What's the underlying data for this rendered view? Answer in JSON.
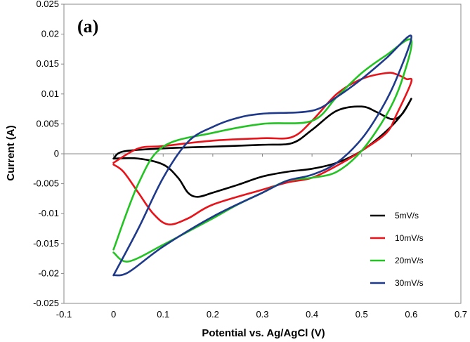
{
  "chart_data": {
    "type": "line",
    "panel_label": "(a)",
    "xlabel": "Potential vs. Ag/AgCl (V)",
    "ylabel": "Current (A)",
    "xlim": [
      -0.1,
      0.7
    ],
    "ylim": [
      -0.025,
      0.025
    ],
    "x_ticks": [
      "-0.1",
      "0",
      "0.1",
      "0.2",
      "0.3",
      "0.4",
      "0.5",
      "0.6",
      "0.7"
    ],
    "y_ticks": [
      "-0.025",
      "-0.02",
      "-0.015",
      "-0.01",
      "-0.005",
      "0",
      "0.005",
      "0.01",
      "0.015",
      "0.02",
      "0.025"
    ],
    "grid": false,
    "legend_position": "bottom-right",
    "series": [
      {
        "name": "5mV/s",
        "color": "#000000",
        "x": [
          0.0,
          0.02,
          0.1,
          0.2,
          0.3,
          0.36,
          0.4,
          0.45,
          0.5,
          0.53,
          0.56,
          0.58,
          0.6,
          0.58,
          0.55,
          0.5,
          0.45,
          0.4,
          0.35,
          0.3,
          0.25,
          0.2,
          0.17,
          0.15,
          0.13,
          0.1,
          0.05,
          0.0
        ],
        "y": [
          -0.0008,
          0.0004,
          0.0009,
          0.0012,
          0.0015,
          0.0018,
          0.004,
          0.0072,
          0.0079,
          0.007,
          0.0058,
          0.0065,
          0.0092,
          0.0065,
          0.0038,
          0.0005,
          -0.0015,
          -0.0025,
          -0.003,
          -0.0038,
          -0.0052,
          -0.0065,
          -0.0072,
          -0.0065,
          -0.004,
          -0.0018,
          -0.0008,
          -0.0008
        ]
      },
      {
        "name": "10mV/s",
        "color": "#e8141b",
        "x": [
          0.0,
          0.05,
          0.1,
          0.2,
          0.3,
          0.36,
          0.4,
          0.45,
          0.5,
          0.55,
          0.57,
          0.59,
          0.6,
          0.57,
          0.55,
          0.5,
          0.45,
          0.4,
          0.35,
          0.3,
          0.2,
          0.15,
          0.11,
          0.08,
          0.05,
          0.02,
          0.0
        ],
        "y": [
          -0.0015,
          0.0009,
          0.0013,
          0.0022,
          0.0026,
          0.0028,
          0.0055,
          0.01,
          0.0125,
          0.0135,
          0.0133,
          0.0125,
          0.012,
          0.0065,
          0.0035,
          0.0005,
          -0.002,
          -0.004,
          -0.0048,
          -0.006,
          -0.0085,
          -0.0108,
          -0.0118,
          -0.01,
          -0.0065,
          -0.003,
          -0.0018
        ]
      },
      {
        "name": "20mV/s",
        "color": "#22c322",
        "x": [
          0.0,
          0.05,
          0.1,
          0.2,
          0.3,
          0.4,
          0.45,
          0.5,
          0.55,
          0.6,
          0.58,
          0.55,
          0.5,
          0.45,
          0.4,
          0.35,
          0.3,
          0.25,
          0.2,
          0.15,
          0.1,
          0.03,
          0.0
        ],
        "y": [
          -0.016,
          -0.005,
          0.0012,
          0.0035,
          0.005,
          0.0055,
          0.0095,
          0.0135,
          0.0165,
          0.019,
          0.012,
          0.0065,
          0.0005,
          -0.003,
          -0.004,
          -0.0045,
          -0.0065,
          -0.0085,
          -0.0108,
          -0.013,
          -0.0152,
          -0.018,
          -0.0165
        ]
      },
      {
        "name": "30mV/s",
        "color": "#1f3a8a",
        "x": [
          0.0,
          0.05,
          0.1,
          0.15,
          0.2,
          0.25,
          0.3,
          0.4,
          0.45,
          0.5,
          0.55,
          0.6,
          0.57,
          0.54,
          0.5,
          0.45,
          0.4,
          0.35,
          0.3,
          0.2,
          0.1,
          0.03,
          0.0
        ],
        "y": [
          -0.0203,
          -0.0125,
          -0.004,
          0.002,
          0.0045,
          0.006,
          0.0067,
          0.0072,
          0.0095,
          0.0125,
          0.016,
          0.0197,
          0.0125,
          0.0075,
          0.0025,
          -0.0015,
          -0.0035,
          -0.0045,
          -0.0065,
          -0.0105,
          -0.0155,
          -0.0198,
          -0.0203
        ]
      }
    ]
  }
}
